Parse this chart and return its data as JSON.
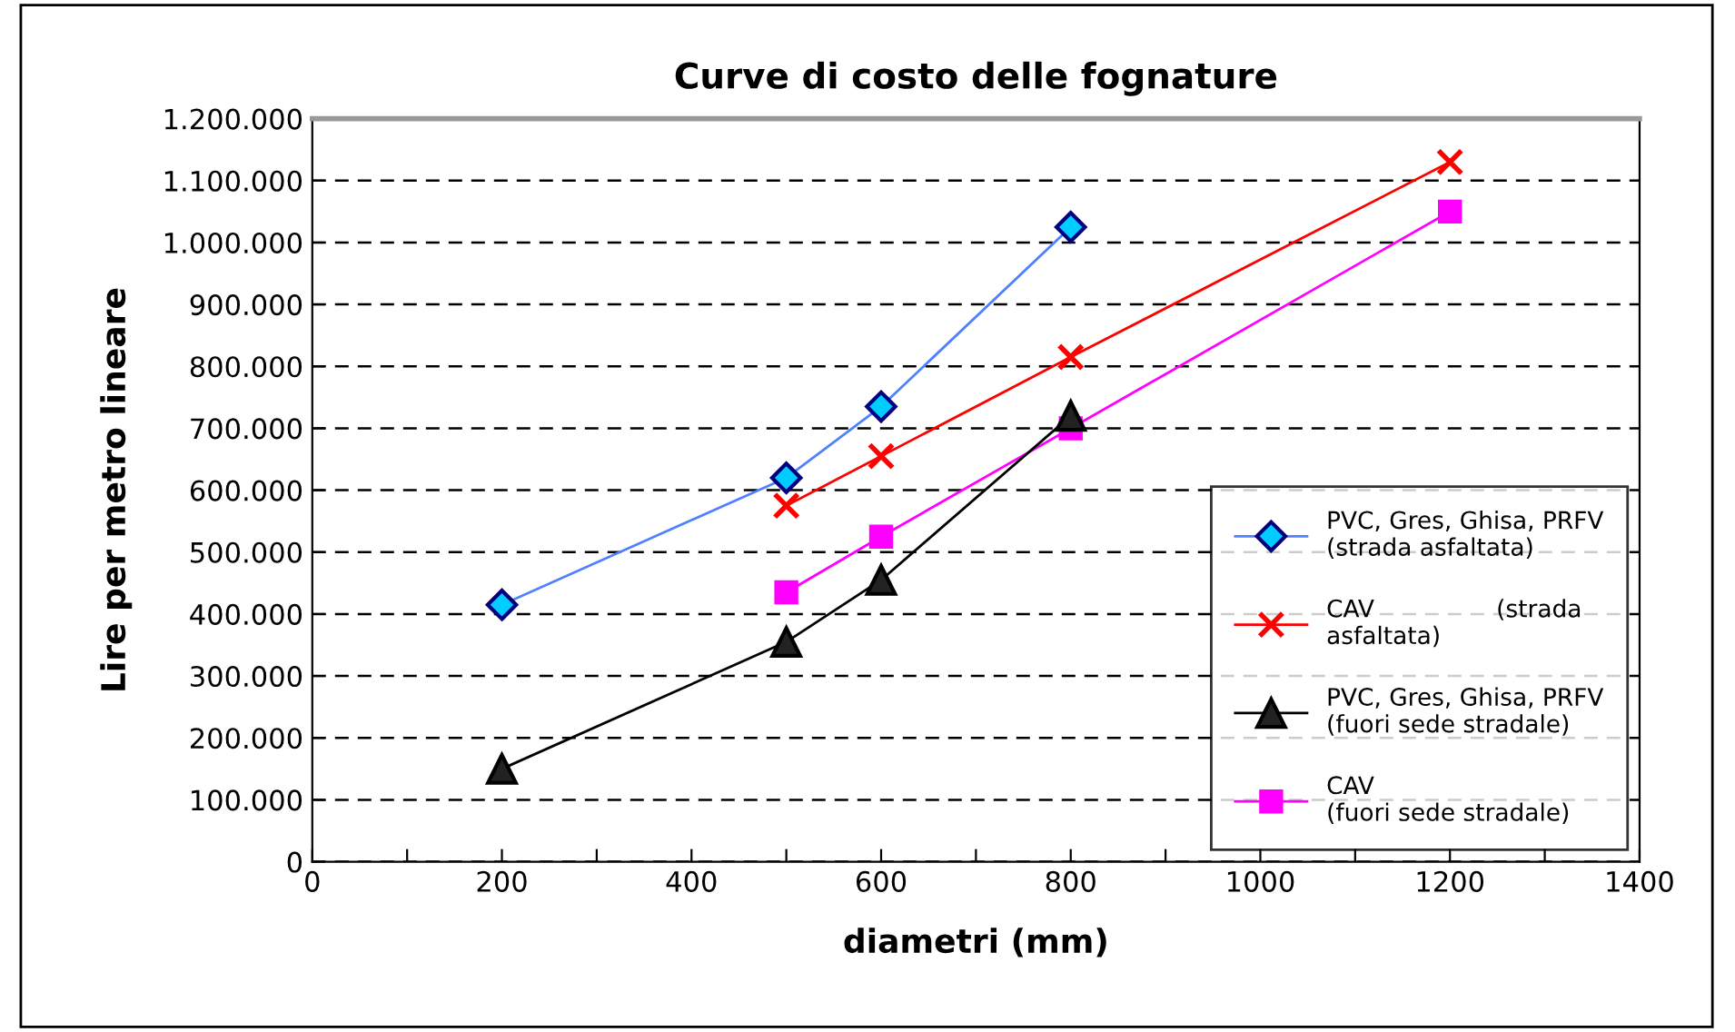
{
  "chart_data": {
    "type": "line",
    "title": "Curve di costo delle fognature",
    "xlabel": "diametri (mm)",
    "ylabel": "Lire per metro lineare",
    "xlim": [
      0,
      1400
    ],
    "xticks": [
      0,
      {
        "value": 100,
        "label": null
      },
      200,
      {
        "value": 300,
        "label": null
      },
      400,
      {
        "value": 500,
        "label": null
      },
      600,
      {
        "value": 700,
        "label": null
      },
      800,
      {
        "value": 900,
        "label": null
      },
      1000,
      {
        "value": 1100,
        "label": null
      },
      1200,
      {
        "value": 1300,
        "label": null
      },
      1400
    ],
    "ylim": [
      0,
      1200000
    ],
    "yticks": [
      0,
      {
        "value": 100000,
        "label": "100.000"
      },
      {
        "value": 200000,
        "label": "200.000"
      },
      {
        "value": 300000,
        "label": "300.000"
      },
      {
        "value": 400000,
        "label": "400.000"
      },
      {
        "value": 500000,
        "label": "500.000"
      },
      {
        "value": 600000,
        "label": "600.000"
      },
      {
        "value": 700000,
        "label": "700.000"
      },
      {
        "value": 800000,
        "label": "800.000"
      },
      {
        "value": 900000,
        "label": "900.000"
      },
      {
        "value": 1000000,
        "label": "1.000.000"
      },
      {
        "value": 1100000,
        "label": "1.100.000"
      },
      {
        "value": 1200000,
        "label": "1.200.000"
      }
    ],
    "grid": "y",
    "legend": "lower right",
    "line_style": "solid",
    "series": [
      {
        "name": "PVC, Gres, Ghisa, PRFV\n(strada asfaltata)",
        "color": "#4f81ff",
        "marker": "diamond",
        "x": [
          200,
          500,
          600,
          800
        ],
        "values": [
          415000,
          620000,
          735000,
          1025000
        ]
      },
      {
        "name": "CAV                (strada\nasfaltata)",
        "color": "#ff0000",
        "marker": "cross",
        "x": [
          500,
          600,
          800,
          1200
        ],
        "values": [
          575000,
          655000,
          815000,
          1130000
        ]
      },
      {
        "name": "PVC, Gres, Ghisa, PRFV\n(fuori sede stradale)",
        "color": "#000000",
        "marker": "triangle",
        "x": [
          200,
          500,
          600,
          800
        ],
        "values": [
          150000,
          355000,
          455000,
          720000
        ]
      },
      {
        "name": "CAV\n(fuori sede stradale)",
        "color": "#ff00ff",
        "marker": "square",
        "x": [
          500,
          600,
          800,
          1200
        ],
        "values": [
          435000,
          525000,
          700000,
          1050000
        ]
      }
    ]
  }
}
